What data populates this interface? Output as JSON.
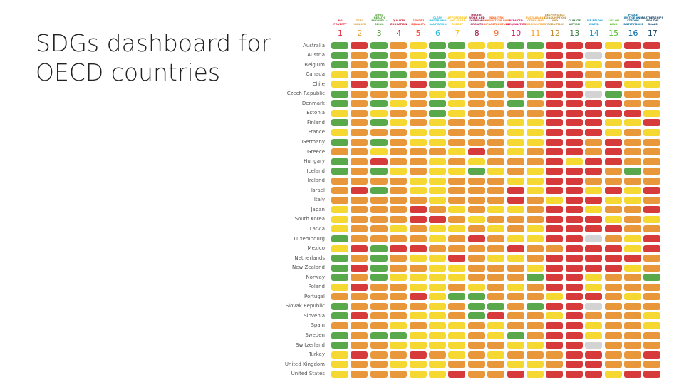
{
  "slide": {
    "title": "SDGs dashboard for OECD countries"
  },
  "colors": {
    "green": "#5aa84c",
    "yellow": "#f5d831",
    "orange": "#e8973a",
    "red": "#d63a3a",
    "grey": "#d3d3d3"
  },
  "goals": [
    {
      "number": "1",
      "label": "NO POVERTY",
      "color": "#e5243b"
    },
    {
      "number": "2",
      "label": "ZERO HUNGER",
      "color": "#dda63a"
    },
    {
      "number": "3",
      "label": "GOOD HEALTH AND WELL-BEING",
      "color": "#4c9f38"
    },
    {
      "number": "4",
      "label": "QUALITY EDUCATION",
      "color": "#c5192d"
    },
    {
      "number": "5",
      "label": "GENDER EQUALITY",
      "color": "#ff3a21"
    },
    {
      "number": "6",
      "label": "CLEAN WATER AND SANITATION",
      "color": "#26bde2"
    },
    {
      "number": "7",
      "label": "AFFORDABLE AND CLEAN ENERGY",
      "color": "#fcc30b"
    },
    {
      "number": "8",
      "label": "DECENT WORK AND ECONOMIC GROWTH",
      "color": "#a21942"
    },
    {
      "number": "9",
      "label": "INDUSTRY, INNOVATION AND INFRASTRUCTURE",
      "color": "#fd6925"
    },
    {
      "number": "10",
      "label": "REDUCED INEQUALITIES",
      "color": "#dd1367"
    },
    {
      "number": "11",
      "label": "SUSTAINABLE CITIES AND COMMUNITIES",
      "color": "#fd9d24"
    },
    {
      "number": "12",
      "label": "RESPONSIBLE CONSUMPTION AND PRODUCTION",
      "color": "#bf8b2e"
    },
    {
      "number": "13",
      "label": "CLIMATE ACTION",
      "color": "#3f7e44"
    },
    {
      "number": "14",
      "label": "LIFE BELOW WATER",
      "color": "#0a97d9"
    },
    {
      "number": "15",
      "label": "LIFE ON LAND",
      "color": "#56c02b"
    },
    {
      "number": "16",
      "label": "PEACE JUSTICE AND STRONG INSTITUTIONS",
      "color": "#00689d"
    },
    {
      "number": "17",
      "label": "PARTNERSHIPS FOR THE GOALS",
      "color": "#19486a"
    }
  ],
  "rows": [
    {
      "country": "Australia",
      "ratings": "grgoyggyyggrrryrr"
    },
    {
      "country": "Austria",
      "ratings": "gogoygyoyyyrrsooo"
    },
    {
      "country": "Belgium",
      "ratings": "gogoygoooooroyoro"
    },
    {
      "country": "Canada",
      "ratings": "yoggogyooyyrroooo"
    },
    {
      "country": "Chile",
      "ratings": "yrgorgyogrorryryy"
    },
    {
      "country": "Czech Republic",
      "ratings": "gooooyoooogrrsgoo"
    },
    {
      "country": "Denmark",
      "ratings": "gogyogyoogorrrroo"
    },
    {
      "country": "Estonia",
      "ratings": "yoyoogyoooorrrrry"
    },
    {
      "country": "Finland",
      "ratings": "gogyoyoooyyrrryyr"
    },
    {
      "country": "France",
      "ratings": "yoooyyoooyyrrryoy"
    },
    {
      "country": "Germany",
      "ratings": "gogoyyoooyyrroroo"
    },
    {
      "country": "Greece",
      "ratings": "ooyoooyroyorroroo"
    },
    {
      "country": "Hungary",
      "ratings": "gorooyoyoooryrroo"
    },
    {
      "country": "Iceland",
      "ratings": "gogyoyygyoyrrrogo"
    },
    {
      "country": "Ireland",
      "ratings": "ooooyyoooyyrroooo"
    },
    {
      "country": "Israel",
      "ratings": "orgoyyoooryrryryr"
    },
    {
      "country": "Italy",
      "ratings": "oooooyoooroyrryyo"
    },
    {
      "country": "Japan",
      "ratings": "yoooroyoyyorryoor"
    },
    {
      "country": "South Korea",
      "ratings": "yooorroyooorrryoy"
    },
    {
      "country": "Latvia",
      "ratings": "yooyoyyoyoyrrrroo"
    },
    {
      "country": "Luxembourg",
      "ratings": "gooooyoroyyrrsoyr"
    },
    {
      "country": "Mexico",
      "ratings": "yrgrrooooroorrryr"
    },
    {
      "country": "Netherlands",
      "ratings": "gogoyyroyyorrrrro"
    },
    {
      "country": "New Zealand",
      "ratings": "grgooyyoooyrrrryo"
    },
    {
      "country": "Norway",
      "ratings": "gogyyyyooogrryoog"
    },
    {
      "country": "Poland",
      "ratings": "yrooyyoyoyorryooo"
    },
    {
      "country": "Portugal",
      "ratings": "ooooryggoooyrroyo"
    },
    {
      "country": "Slovak Republic",
      "ratings": "gooooyoggogrrsooo"
    },
    {
      "country": "Slovenia",
      "ratings": "grooyyogrooyroooy"
    },
    {
      "country": "Spain",
      "ratings": "oooyoyyoyoorryooy"
    },
    {
      "country": "Sweden",
      "ratings": "goggyyyoygorryooo"
    },
    {
      "country": "Switzerland",
      "ratings": "gooyyyyooyyrrsooo"
    },
    {
      "country": "Turkey",
      "ratings": "yrooroyoyooorroor"
    },
    {
      "country": "United Kingdom",
      "ratings": "yooyyyoooyyorrooo"
    },
    {
      "country": "United States",
      "ratings": "yoooyyrooryrrryrr"
    }
  ]
}
